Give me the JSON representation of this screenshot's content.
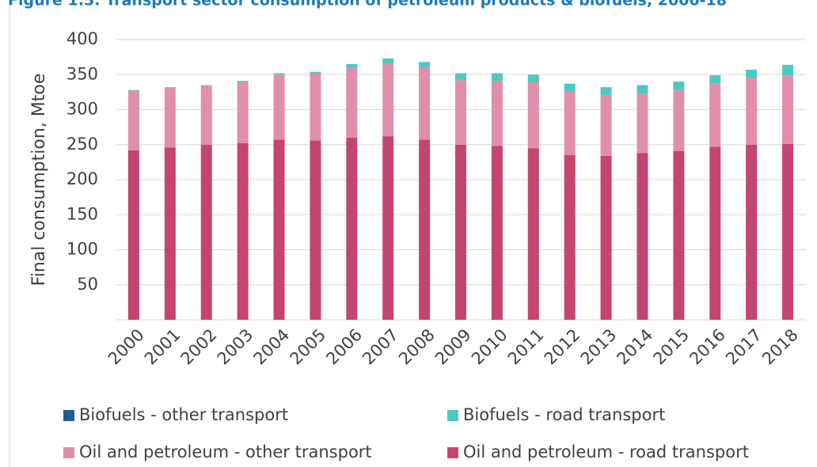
{
  "chart_data": {
    "type": "bar",
    "stacked": true,
    "title": "Figure 1.5: Transport sector consumption of petroleum products & biofuels, 2000-18",
    "y_label": "Final consumption, Mtoe",
    "categories": [
      "2000",
      "2001",
      "2002",
      "2003",
      "2004",
      "2005",
      "2006",
      "2007",
      "2008",
      "2009",
      "2010",
      "2011",
      "2012",
      "2013",
      "2014",
      "2015",
      "2016",
      "2017",
      "2018"
    ],
    "series": [
      {
        "name": "Oil and petroleum - road transport",
        "color": "#c4456e",
        "values": [
          242,
          246,
          250,
          252,
          257,
          256,
          260,
          262,
          257,
          250,
          248,
          245,
          235,
          234,
          238,
          241,
          247,
          250,
          251
        ]
      },
      {
        "name": "Oil and petroleum - other transport",
        "color": "#e08fab",
        "values": [
          85,
          85,
          84,
          87,
          93,
          96,
          100,
          104,
          103,
          92,
          93,
          94,
          91,
          86,
          85,
          87,
          90,
          95,
          98
        ]
      },
      {
        "name": "Biofuels - road transport",
        "color": "#4cc9c0",
        "values": [
          1,
          1,
          1,
          2,
          2,
          2,
          5,
          7,
          8,
          10,
          11,
          11,
          11,
          12,
          12,
          12,
          12,
          12,
          15
        ]
      },
      {
        "name": "Biofuels - other transport",
        "color": "#1f5f8b",
        "values": [
          0,
          0,
          0,
          0,
          0,
          0,
          0,
          0,
          0,
          0,
          0,
          0,
          0,
          0,
          0,
          0,
          0,
          0,
          0
        ]
      }
    ],
    "ylim": [
      0,
      400
    ],
    "yticks": [
      50,
      100,
      150,
      200,
      250,
      300,
      350,
      400
    ],
    "grid": true
  }
}
